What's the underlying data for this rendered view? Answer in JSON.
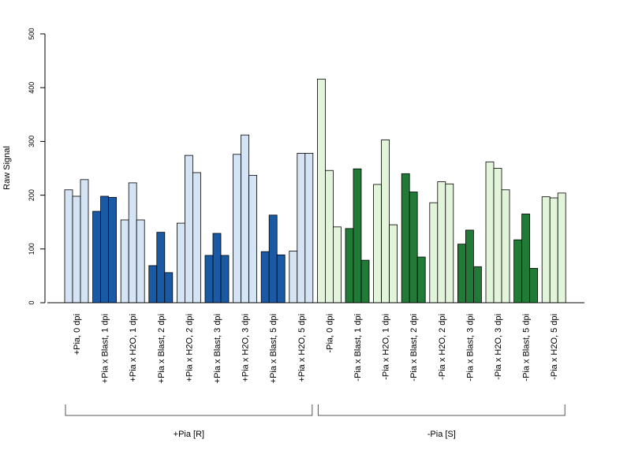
{
  "chart_data": {
    "type": "bar",
    "ylabel": "Raw Signal",
    "ylim": [
      0,
      500
    ],
    "yticks": [
      "0",
      "100",
      "200",
      "300",
      "400",
      "500"
    ],
    "bars_per_group": 3,
    "categories": [
      "+Pia, 0 dpi",
      "+Pia x Blast, 1 dpi",
      "+Pia x H2O, 1 dpi",
      "+Pia x Blast, 2 dpi",
      "+Pia x H2O, 2 dpi",
      "+Pia x Blast, 3 dpi",
      "+Pia x H2O, 3 dpi",
      "+Pia x Blast, 5 dpi",
      "+Pia x H2O, 5 dpi",
      "-Pia, 0 dpi",
      "-Pia x Blast, 1 dpi",
      "-Pia x H2O, 1 dpi",
      "-Pia x Blast, 2 dpi",
      "-Pia x H2O, 2 dpi",
      "-Pia x Blast, 3 dpi",
      "-Pia x H2O, 3 dpi",
      "-Pia x Blast, 5 dpi",
      "-Pia x H2O, 5 dpi"
    ],
    "values": [
      [
        210,
        198,
        229
      ],
      [
        170,
        198,
        196
      ],
      [
        154,
        223,
        154
      ],
      [
        69,
        131,
        56
      ],
      [
        148,
        274,
        242
      ],
      [
        88,
        129,
        88
      ],
      [
        276,
        312,
        237
      ],
      [
        95,
        163,
        89
      ],
      [
        96,
        278,
        278
      ],
      [
        416,
        246,
        141
      ],
      [
        138,
        249,
        79
      ],
      [
        220,
        303,
        145
      ],
      [
        240,
        206,
        85
      ],
      [
        186,
        225,
        221
      ],
      [
        109,
        135,
        67
      ],
      [
        262,
        250,
        210
      ],
      [
        117,
        165,
        64
      ],
      [
        197,
        195,
        204
      ]
    ],
    "colors": [
      "#d5e4f4",
      "#1a5aa5",
      "#d5e4f4",
      "#1a5aa5",
      "#d5e4f4",
      "#1a5aa5",
      "#d5e4f4",
      "#1a5aa5",
      "#d5e4f4",
      "#e2f5da",
      "#217a35",
      "#e2f5da",
      "#217a35",
      "#e2f5da",
      "#217a35",
      "#e2f5da",
      "#217a35",
      "#e2f5da"
    ],
    "groups": [
      {
        "label": "+Pia [R]",
        "from": 0,
        "to": 8
      },
      {
        "label": "-Pia [S]",
        "from": 9,
        "to": 17
      }
    ]
  }
}
